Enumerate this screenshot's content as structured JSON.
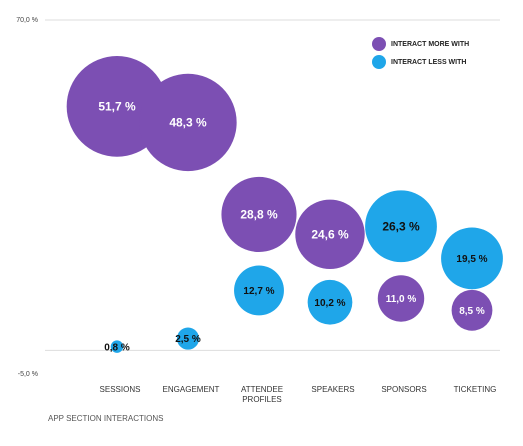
{
  "chart_data": {
    "type": "bubble",
    "categories": [
      "SESSIONS",
      "ENGAGEMENT",
      "ATTENDEE PROFILES",
      "SPEAKERS",
      "SPONSORS",
      "TICKETING"
    ],
    "series": [
      {
        "name": "INTERACT MORE WITH",
        "color": "#7c4fb3",
        "values": [
          51.7,
          48.3,
          28.8,
          24.6,
          11.0,
          8.5
        ],
        "value_labels": [
          "51,7 %",
          "48,3 %",
          "28,8 %",
          "24,6 %",
          "11,0 %",
          "8,5 %"
        ]
      },
      {
        "name": "INTERACT LESS WITH",
        "color": "#1fa6e9",
        "values": [
          0.8,
          2.5,
          12.7,
          10.2,
          26.3,
          19.5
        ],
        "value_labels": [
          "0,8 %",
          "2,5 %",
          "12,7 %",
          "10,2 %",
          "26,3 %",
          "19,5 %"
        ]
      }
    ],
    "ylim": [
      -5,
      70
    ],
    "yticks": [
      {
        "value": 70,
        "label": "70,0 %"
      },
      {
        "value": -5,
        "label": "-5,0 %"
      }
    ],
    "xlabel": "APP SECTION INTERACTIONS",
    "legend": "top-right"
  }
}
